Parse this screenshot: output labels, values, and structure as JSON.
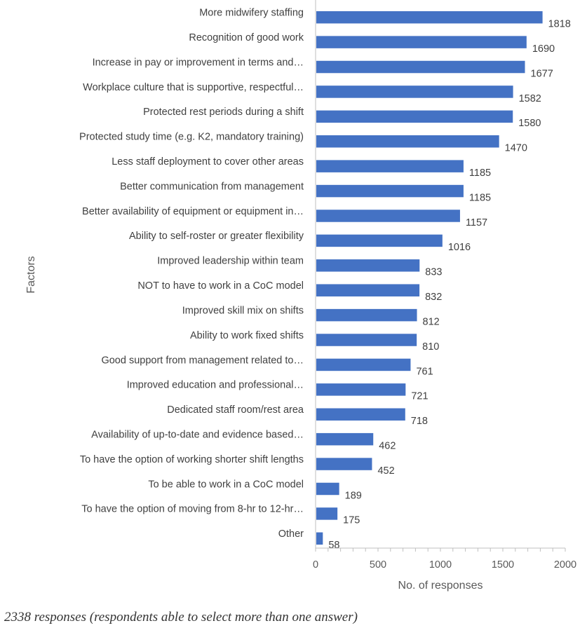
{
  "chart_data": {
    "type": "bar",
    "orientation": "horizontal",
    "categories": [
      "More midwifery staffing",
      "Recognition of good work",
      "Increase in pay or improvement in terms and…",
      "Workplace culture that is supportive, respectful…",
      "Protected rest periods during a shift",
      "Protected study time (e.g. K2, mandatory training)",
      "Less staff deployment to cover other areas",
      "Better communication from management",
      "Better availability of equipment or equipment in…",
      "Ability to self-roster or greater flexibility",
      "Improved leadership within team",
      "NOT to have to work in a CoC model",
      "Improved skill mix on shifts",
      "Ability to work fixed shifts",
      "Good support from management related to…",
      "Improved education and professional…",
      "Dedicated staff room/rest area",
      "Availability of up-to-date and evidence based…",
      "To have the option of working shorter shift lengths",
      "To be able to work in a CoC model",
      "To have the option of moving from 8-hr to 12-hr…",
      "Other"
    ],
    "values": [
      1818,
      1690,
      1677,
      1582,
      1580,
      1470,
      1185,
      1185,
      1157,
      1016,
      833,
      832,
      812,
      810,
      761,
      721,
      718,
      462,
      452,
      189,
      175,
      58
    ],
    "xlabel": "No. of responses",
    "ylabel": "Factors",
    "xlim": [
      0,
      2000
    ],
    "xticks": [
      0,
      500,
      1000,
      1500,
      2000
    ],
    "grid": false,
    "bar_color": "#4472c4"
  },
  "caption": "2338 responses (respondents able to select more than one answer)"
}
